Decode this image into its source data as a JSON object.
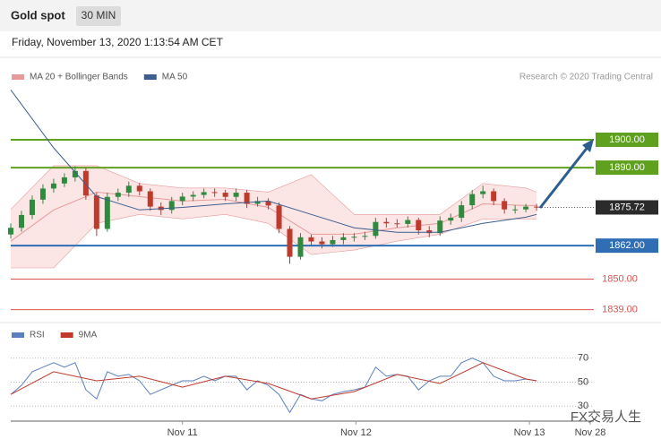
{
  "chart_data": [
    {
      "type": "candlestick",
      "title": "Gold spot",
      "timeframe": "30 MIN",
      "timestamp": "Friday, November 13, 2020 1:13:54 AM CET",
      "source": "Research © 2020 Trading Central",
      "xlim": [
        0,
        163
      ],
      "ylim": [
        1836,
        1918
      ],
      "up_color": "#2e8b3e",
      "down_color": "#c0392b",
      "x": [
        0,
        3,
        6,
        9,
        12,
        15,
        18,
        21,
        24,
        27,
        30,
        33,
        36,
        39,
        42,
        45,
        48,
        51,
        54,
        57,
        60,
        63,
        66,
        69,
        72,
        75,
        78,
        81,
        84,
        87,
        90,
        93,
        96,
        99,
        102,
        105,
        108,
        111,
        114,
        117,
        120,
        123,
        126,
        129,
        132,
        135,
        138,
        141,
        144,
        147
      ],
      "open": [
        1866.0,
        1868.4,
        1873.0,
        1878.5,
        1882.5,
        1884.3,
        1886.5,
        1888.8,
        1880.0,
        1868.0,
        1879.5,
        1881.0,
        1883.5,
        1881.5,
        1876.0,
        1874.8,
        1878.0,
        1879.6,
        1880.2,
        1881.2,
        1881.0,
        1879.5,
        1881.0,
        1877.0,
        1878.0,
        1876.4,
        1868.0,
        1858.0,
        1865.0,
        1863.5,
        1862.5,
        1864.0,
        1865.0,
        1865.2,
        1865.5,
        1870.5,
        1870.0,
        1869.8,
        1871.2,
        1867.5,
        1866.5,
        1871.0,
        1872.0,
        1876.5,
        1880.5,
        1881.5,
        1878.0,
        1875.0,
        1875.0,
        1876.0
      ],
      "high": [
        1870.0,
        1874.5,
        1880.0,
        1884.0,
        1886.0,
        1888.0,
        1890.5,
        1890.0,
        1881.0,
        1881.0,
        1882.5,
        1885.0,
        1884.5,
        1882.5,
        1877.5,
        1879.5,
        1881.0,
        1881.5,
        1882.5,
        1882.5,
        1882.0,
        1882.5,
        1882.0,
        1879.5,
        1879.0,
        1877.5,
        1869.0,
        1866.5,
        1866.0,
        1865.0,
        1865.5,
        1866.5,
        1866.5,
        1867.0,
        1872.0,
        1872.0,
        1871.5,
        1872.5,
        1872.0,
        1869.0,
        1872.5,
        1873.5,
        1878.0,
        1882.0,
        1883.5,
        1882.5,
        1879.0,
        1876.5,
        1877.0,
        1877.0
      ],
      "low": [
        1864.5,
        1867.0,
        1871.5,
        1877.0,
        1881.0,
        1883.0,
        1885.0,
        1878.5,
        1865.5,
        1867.0,
        1878.0,
        1879.5,
        1880.0,
        1874.5,
        1873.0,
        1873.5,
        1876.5,
        1878.0,
        1879.0,
        1879.5,
        1878.0,
        1878.0,
        1875.5,
        1876.0,
        1875.0,
        1866.5,
        1855.5,
        1857.0,
        1862.0,
        1861.0,
        1861.5,
        1862.5,
        1863.5,
        1864.0,
        1864.5,
        1868.5,
        1868.5,
        1868.5,
        1866.0,
        1865.0,
        1865.5,
        1869.5,
        1870.5,
        1875.0,
        1879.0,
        1876.5,
        1873.5,
        1873.5,
        1874.0,
        1874.5
      ],
      "close": [
        1868.4,
        1873.0,
        1878.5,
        1882.5,
        1884.3,
        1886.5,
        1888.8,
        1880.0,
        1868.0,
        1879.5,
        1881.0,
        1883.5,
        1881.5,
        1876.0,
        1874.8,
        1878.0,
        1879.6,
        1880.2,
        1881.2,
        1881.0,
        1879.5,
        1881.0,
        1877.0,
        1878.0,
        1876.4,
        1868.0,
        1858.0,
        1865.0,
        1863.5,
        1862.5,
        1864.0,
        1865.0,
        1865.2,
        1865.5,
        1870.5,
        1870.0,
        1869.8,
        1871.2,
        1867.5,
        1866.5,
        1871.0,
        1872.0,
        1876.5,
        1880.5,
        1881.5,
        1878.0,
        1875.0,
        1875.0,
        1876.0,
        1875.72
      ],
      "bands": {
        "name": "MA 20 + Bollinger Bands",
        "color": "#e79a9a",
        "fill": "#fbdede",
        "x": [
          0,
          12,
          24,
          36,
          48,
          60,
          72,
          84,
          96,
          108,
          120,
          132,
          144,
          147
        ],
        "upper": [
          1875.0,
          1890.7,
          1890.7,
          1884.3,
          1882.7,
          1882.7,
          1881.2,
          1887.5,
          1873.2,
          1873.2,
          1873.2,
          1884.3,
          1882.7,
          1881.2
        ],
        "middle": [
          1863.6,
          1874.8,
          1881.2,
          1879.6,
          1878.0,
          1878.6,
          1875.7,
          1866.1,
          1866.1,
          1868.4,
          1870.0,
          1877.0,
          1876.4,
          1876.4
        ],
        "lower": [
          1854.0,
          1854.0,
          1870.0,
          1873.2,
          1871.6,
          1873.2,
          1870.0,
          1858.8,
          1860.4,
          1863.6,
          1866.1,
          1871.6,
          1871.6,
          1871.6
        ]
      },
      "ma": {
        "name": "MA 50",
        "color": "#3d5f8f",
        "x": [
          0,
          12,
          24,
          36,
          48,
          60,
          72,
          84,
          96,
          108,
          120,
          132,
          144,
          147
        ],
        "values": [
          1917.9,
          1897.1,
          1879.6,
          1874.8,
          1875.7,
          1877.0,
          1878.0,
          1873.2,
          1868.4,
          1866.8,
          1866.8,
          1870.0,
          1872.2,
          1873.2
        ]
      },
      "levels": [
        {
          "value": 1900,
          "label": "1900.00",
          "color": "#5fa11e",
          "style": "box"
        },
        {
          "value": 1890,
          "label": "1890.00",
          "color": "#5fa11e",
          "style": "box"
        },
        {
          "value": 1875.72,
          "label": "1875.72",
          "color": "#2b2b2b",
          "style": "current"
        },
        {
          "value": 1862,
          "label": "1862.00",
          "color": "#2f6db5",
          "style": "box"
        },
        {
          "value": 1850,
          "label": "1850.00",
          "color": "#d9534f",
          "style": "text"
        },
        {
          "value": 1839,
          "label": "1839.00",
          "color": "#d9534f",
          "style": "text"
        }
      ]
    },
    {
      "type": "line",
      "xlim": [
        0,
        163
      ],
      "ylim": [
        19,
        81
      ],
      "yticks": [
        70,
        50,
        30
      ],
      "xticks": [
        {
          "value": 48,
          "label": "Nov 11"
        },
        {
          "value": 96.5,
          "label": "Nov 12"
        },
        {
          "value": 145,
          "label": "Nov 13"
        },
        {
          "value": 162,
          "label": "Nov 28"
        }
      ],
      "watermark": "FX交易人生",
      "series": [
        {
          "name": "RSI",
          "color": "#5b7fbf",
          "x": [
            0,
            3,
            6,
            9,
            12,
            15,
            18,
            21,
            24,
            27,
            30,
            33,
            36,
            39,
            42,
            45,
            48,
            51,
            54,
            57,
            60,
            63,
            66,
            69,
            72,
            75,
            78,
            81,
            84,
            87,
            90,
            93,
            96,
            99,
            102,
            105,
            108,
            111,
            114,
            117,
            120,
            123,
            126,
            129,
            132,
            135,
            138,
            141,
            144,
            147
          ],
          "values": [
            39.8,
            47.4,
            58.7,
            62.5,
            66.2,
            62.5,
            66.2,
            43.6,
            36.0,
            58.7,
            54.9,
            56.4,
            51.1,
            39.8,
            43.6,
            47.4,
            51.1,
            51.1,
            54.9,
            51.1,
            54.9,
            54.9,
            43.6,
            51.1,
            47.4,
            39.8,
            24.7,
            39.8,
            36.0,
            34.5,
            39.8,
            42.1,
            43.6,
            45.8,
            62.5,
            54.9,
            56.4,
            54.9,
            43.6,
            51.1,
            54.9,
            54.9,
            66.2,
            70,
            66.2,
            54.9,
            51.1,
            51.1,
            52.6,
            51.1
          ]
        },
        {
          "name": "9MA",
          "color": "#c0392b",
          "x": [
            0,
            12,
            24,
            36,
            48,
            60,
            72,
            84,
            96,
            108,
            120,
            132,
            144,
            147
          ],
          "values": [
            39.8,
            58.7,
            51.1,
            54.9,
            45.8,
            54.9,
            48.9,
            36.0,
            42.1,
            56.4,
            48.9,
            66.2,
            52.6,
            51.1
          ]
        }
      ]
    }
  ]
}
